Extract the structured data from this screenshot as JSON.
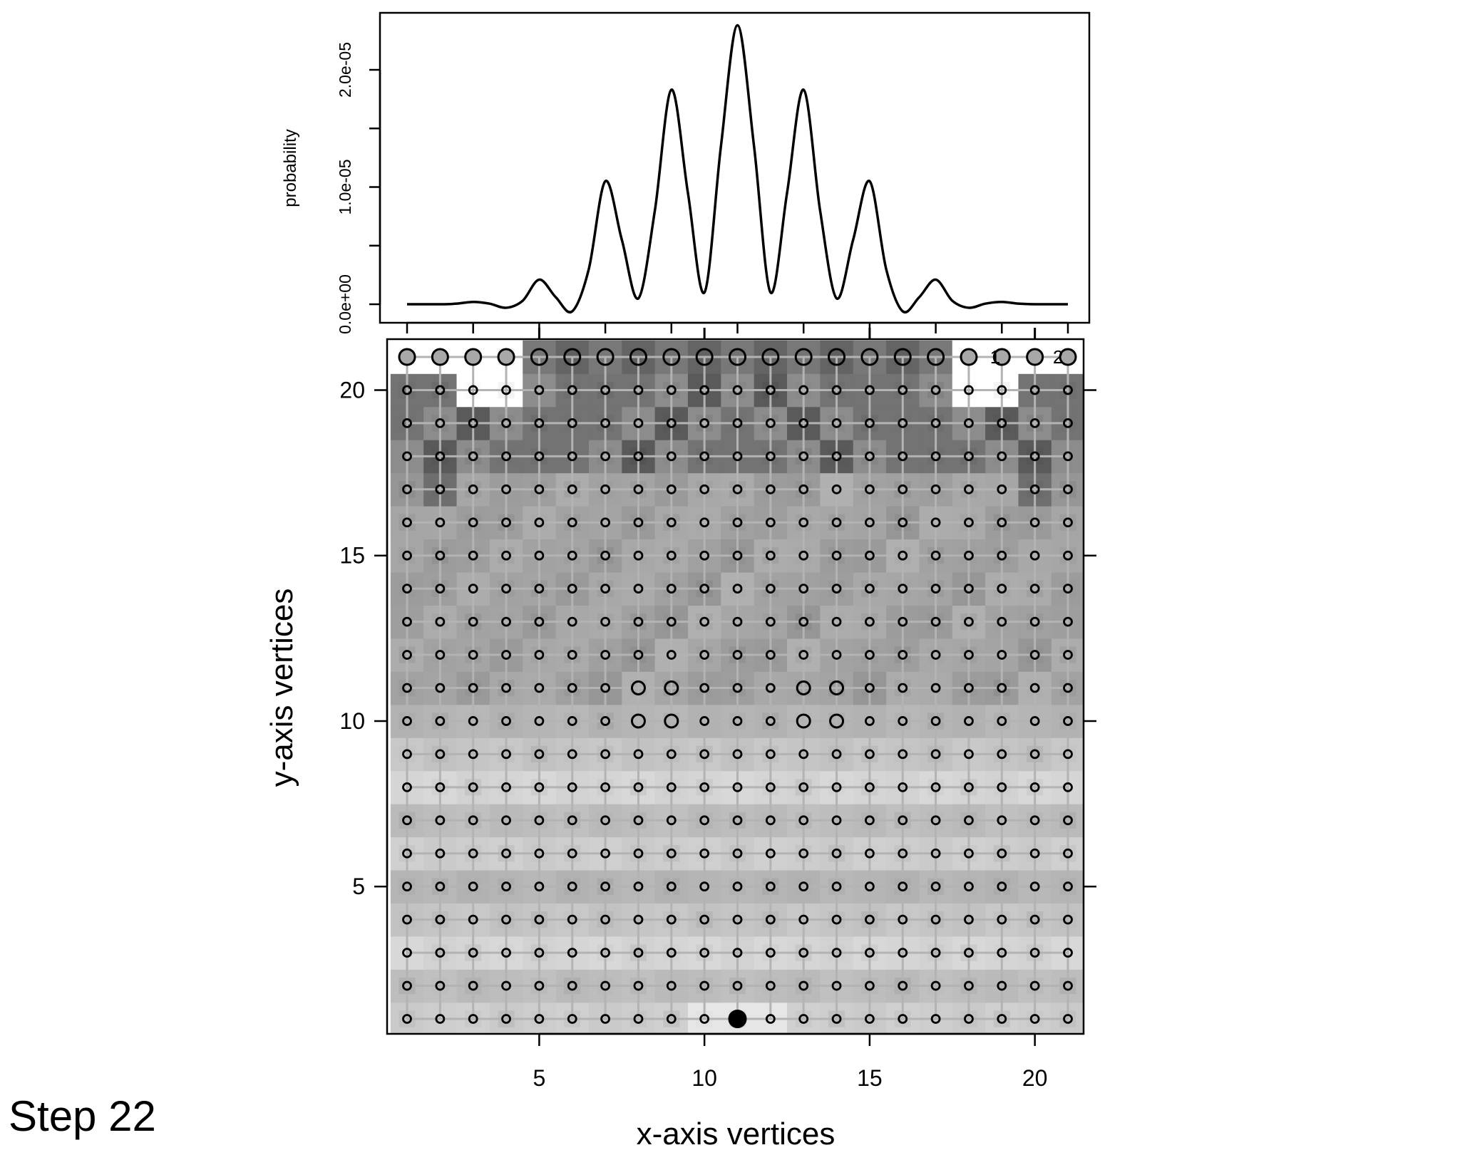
{
  "step_label": "Step 22",
  "chart_data": [
    {
      "type": "line",
      "name": "probability-curve",
      "xlabel": "",
      "ylabel": "probability",
      "ylim": [
        0,
        2.5e-05
      ],
      "y_ticks": [
        0,
        5e-06,
        1e-05,
        1.5e-05,
        2e-05
      ],
      "y_tick_labels": [
        "0.0e+00",
        "",
        "1.0e-05",
        "",
        "2.0e-05"
      ],
      "x_ticks": [
        1,
        3,
        5,
        7,
        9,
        11,
        13,
        15,
        17,
        19,
        21
      ],
      "x": [
        1,
        2,
        2.5,
        3,
        3.5,
        4,
        4.5,
        5,
        5.5,
        6,
        6.5,
        7,
        7.5,
        8,
        8.5,
        9,
        9.5,
        10,
        10.5,
        11,
        11.5,
        12,
        12.5,
        13,
        13.5,
        14,
        14.5,
        15,
        15.5,
        16,
        16.5,
        17,
        17.5,
        18,
        18.5,
        19,
        19.5,
        20,
        21
      ],
      "y": [
        0,
        0,
        5e-08,
        2e-07,
        5e-08,
        -3e-07,
        3e-07,
        2.1e-06,
        6e-07,
        -6e-07,
        3e-06,
        1.05e-05,
        5.5e-06,
        5e-07,
        8e-06,
        1.83e-05,
        9.5e-06,
        1e-06,
        1.35e-05,
        2.38e-05,
        1.35e-05,
        1e-06,
        9.5e-06,
        1.83e-05,
        8e-06,
        5e-07,
        5.5e-06,
        1.05e-05,
        3e-06,
        -6e-07,
        6e-07,
        2.1e-06,
        3e-07,
        -3e-07,
        5e-08,
        2e-07,
        5e-08,
        0,
        0
      ]
    },
    {
      "type": "heatmap",
      "name": "lattice-grid",
      "xlabel": "x-axis vertices",
      "ylabel": "y-axis vertices",
      "xlim": [
        1,
        21
      ],
      "ylim": [
        1,
        21
      ],
      "x_ticks": [
        5,
        10,
        15,
        20
      ],
      "y_ticks": [
        5,
        10,
        15,
        20
      ],
      "top_row_labels": [
        {
          "x": 18.8,
          "text": "1"
        },
        {
          "x": 20.7,
          "text": "2"
        }
      ],
      "large_hollow_nodes": [
        [
          8,
          11
        ],
        [
          9,
          11
        ],
        [
          13,
          11
        ],
        [
          14,
          11
        ],
        [
          8,
          10
        ],
        [
          9,
          10
        ],
        [
          13,
          10
        ],
        [
          14,
          10
        ]
      ],
      "filled_top_row_columns": [
        1,
        2,
        3,
        4,
        18,
        19,
        20,
        21
      ],
      "current_position": [
        11,
        1
      ],
      "colors": {
        "background": "#ffffff",
        "grid_line": "#b3b3b3",
        "current_position": "#000000",
        "top_row_fill": "#a8a8a8"
      }
    }
  ]
}
